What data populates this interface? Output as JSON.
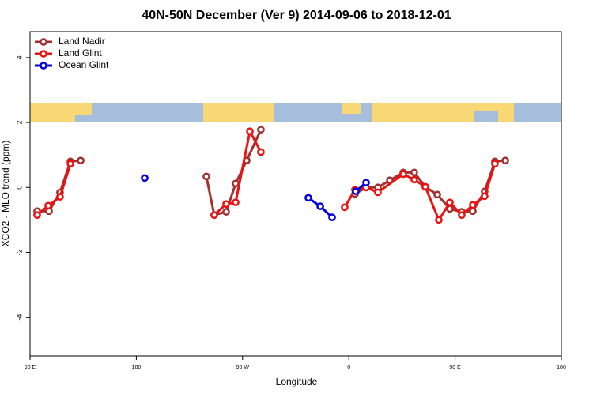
{
  "chart_data": {
    "type": "line",
    "title": "40N-50N December (Ver 9)   2014-09-06 to 2018-12-01",
    "x_label": "Longitude",
    "y_label": "XCO2 - MLO trend (ppm)",
    "xlim": [
      90,
      540
    ],
    "ylim": [
      -5.2,
      4.8
    ],
    "xticks": [
      {
        "value": 90,
        "label": "90 E"
      },
      180,
      {
        "value": 270,
        "label": "90 W"
      },
      {
        "value": 360,
        "label": "0"
      },
      {
        "value": 450,
        "label": "90 E"
      },
      {
        "value": 540,
        "label": "180"
      }
    ],
    "yticks": [
      -4,
      -2,
      0,
      2,
      4
    ],
    "legend": "top-left",
    "series": [
      {
        "name": "Land Nadir",
        "color": "#a3302e",
        "x": [
          96.0,
          106.1,
          115.4,
          124.2,
          132.9,
          null,
          239.3,
          246.0,
          256.1,
          264.1,
          273.5,
          285.5,
          null,
          365.2,
          374.6,
          384.6,
          394.7,
          406.1,
          415.4,
          424.8,
          434.9,
          445.6,
          455.6,
          465.0,
          475.0,
          483.7,
          492.5
        ],
        "values": [
          -0.73,
          -0.73,
          -0.15,
          0.8,
          0.83,
          null,
          0.34,
          -0.85,
          -0.75,
          0.12,
          0.83,
          1.78,
          null,
          -0.2,
          0.0,
          0.0,
          0.22,
          0.46,
          0.46,
          0.02,
          -0.22,
          -0.66,
          -0.75,
          -0.73,
          -0.12,
          0.8,
          0.83
        ]
      },
      {
        "name": "Land Glint",
        "color": "#ee1111",
        "x": [
          96.0,
          105.4,
          115.4,
          124.2,
          null,
          246.0,
          256.1,
          264.1,
          276.2,
          285.5,
          null,
          356.5,
          365.2,
          374.6,
          384.6,
          406.1,
          415.4,
          424.8,
          436.2,
          445.6,
          455.6,
          465.0,
          475.0,
          483.7
        ],
        "values": [
          -0.85,
          -0.56,
          -0.29,
          0.73,
          null,
          -0.85,
          -0.51,
          -0.46,
          1.73,
          1.09,
          null,
          -0.61,
          -0.07,
          0.0,
          -0.15,
          0.41,
          0.24,
          0.02,
          -1.0,
          -0.46,
          -0.85,
          -0.54,
          -0.27,
          0.73
        ]
      },
      {
        "name": "Ocean Glint",
        "color": "#0000dd",
        "x": [
          187.1,
          null,
          325.7,
          335.8,
          345.8,
          null,
          365.9,
          374.6
        ],
        "values": [
          0.29,
          null,
          -0.32,
          -0.58,
          -0.92,
          null,
          -0.12,
          0.15
        ]
      }
    ]
  }
}
